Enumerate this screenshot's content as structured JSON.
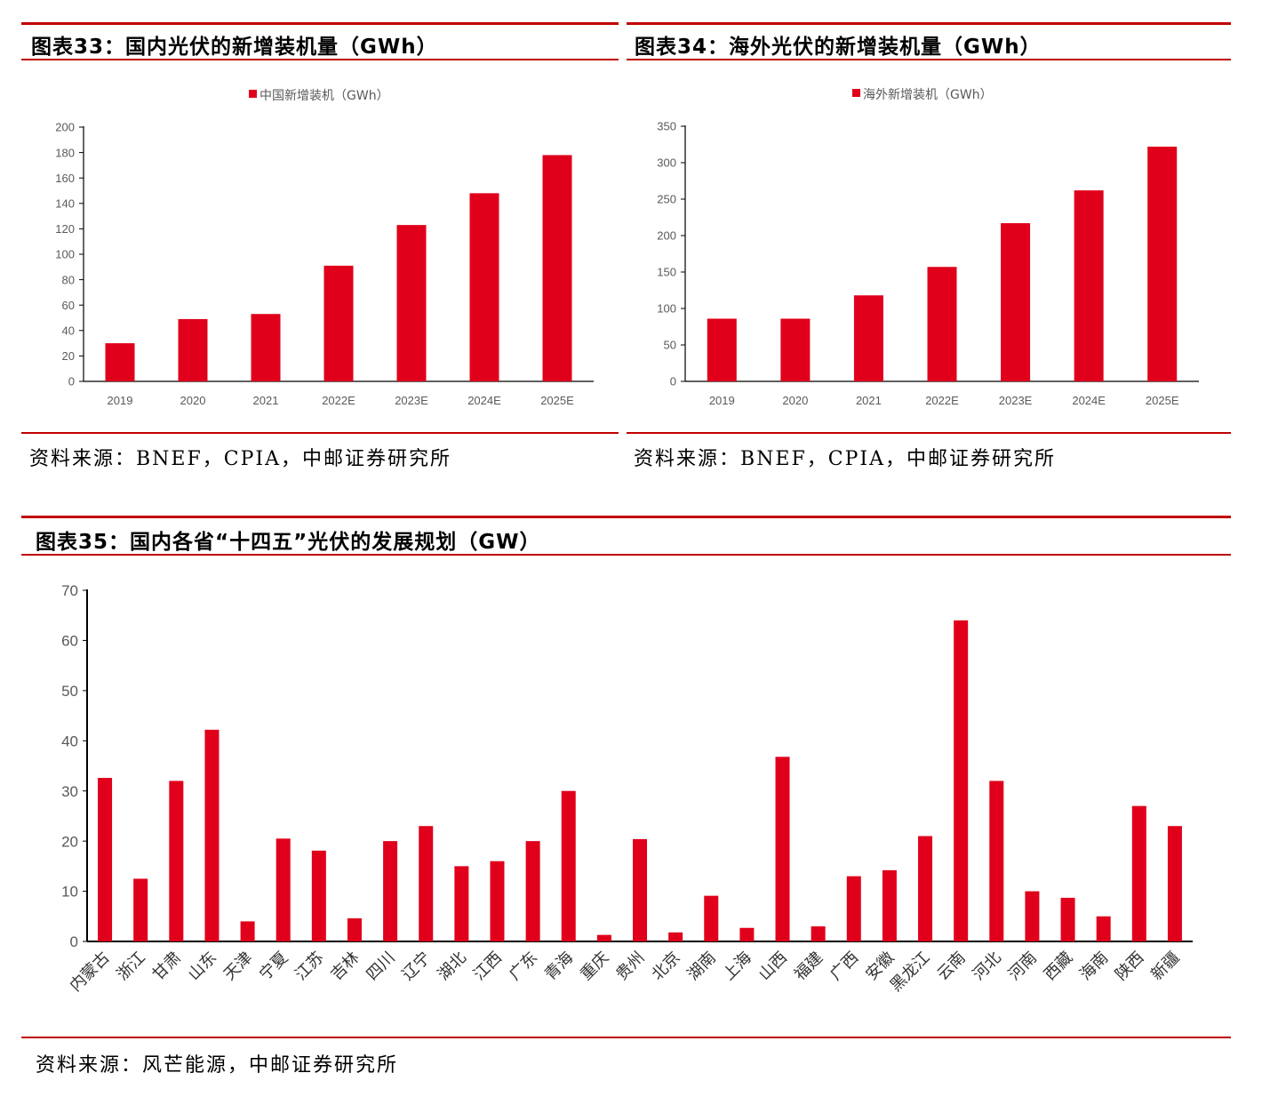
{
  "panels": [
    {
      "title": "图表33：国内光伏的新增装机量（GWh）",
      "source": "资料来源：BNEF，CPIA，中邮证券研究所"
    },
    {
      "title": "图表34：海外光伏的新增装机量（GWh）",
      "source": "资料来源：BNEF，CPIA，中邮证券研究所"
    },
    {
      "title": "图表35：国内各省“十四五”光伏的发展规划（GW）",
      "source": "资料来源：风芒能源，中邮证券研究所"
    }
  ],
  "colors": {
    "bar": "#e0001b",
    "rule": "#c00000",
    "axis": "#000000",
    "text": "#595959"
  },
  "chart_data": [
    {
      "type": "bar",
      "title": "图表33：国内光伏的新增装机量（GWh）",
      "legend": "中国新增装机（GWh）",
      "legend_position": "top",
      "categories": [
        "2019",
        "2020",
        "2021",
        "2022E",
        "2023E",
        "2024E",
        "2025E"
      ],
      "values": [
        30,
        49,
        53,
        91,
        123,
        148,
        178
      ],
      "ylim": [
        0,
        200
      ],
      "yticks": [
        0,
        20,
        40,
        60,
        80,
        100,
        120,
        140,
        160,
        180,
        200
      ],
      "xlabel": "",
      "ylabel": ""
    },
    {
      "type": "bar",
      "title": "图表34：海外光伏的新增装机量（GWh）",
      "legend": "海外新增装机（GWh）",
      "legend_position": "top",
      "categories": [
        "2019",
        "2020",
        "2021",
        "2022E",
        "2023E",
        "2024E",
        "2025E"
      ],
      "values": [
        86,
        86,
        118,
        157,
        217,
        262,
        322
      ],
      "ylim": [
        0,
        350
      ],
      "yticks": [
        0,
        50,
        100,
        150,
        200,
        250,
        300,
        350
      ],
      "xlabel": "",
      "ylabel": ""
    },
    {
      "type": "bar",
      "title": "图表35：国内各省“十四五”光伏的发展规划（GW）",
      "categories": [
        "内蒙古",
        "浙江",
        "甘肃",
        "山东",
        "天津",
        "宁夏",
        "江苏",
        "吉林",
        "四川",
        "辽宁",
        "湖北",
        "江西",
        "广东",
        "青海",
        "重庆",
        "贵州",
        "北京",
        "湖南",
        "上海",
        "山西",
        "福建",
        "广西",
        "安徽",
        "黑龙江",
        "云南",
        "河北",
        "河南",
        "西藏",
        "海南",
        "陕西",
        "新疆"
      ],
      "values": [
        32.6,
        12.5,
        32,
        42.2,
        4,
        20.5,
        18.1,
        4.6,
        20,
        23,
        15,
        16,
        20,
        30,
        1.3,
        20.4,
        1.8,
        9.1,
        2.7,
        36.8,
        3,
        13,
        14.2,
        21,
        64,
        32,
        10,
        8.7,
        5,
        27,
        23
      ],
      "ylim": [
        0,
        70
      ],
      "yticks": [
        0,
        10,
        20,
        30,
        40,
        50,
        60,
        70
      ],
      "xlabel": "",
      "ylabel": ""
    }
  ]
}
